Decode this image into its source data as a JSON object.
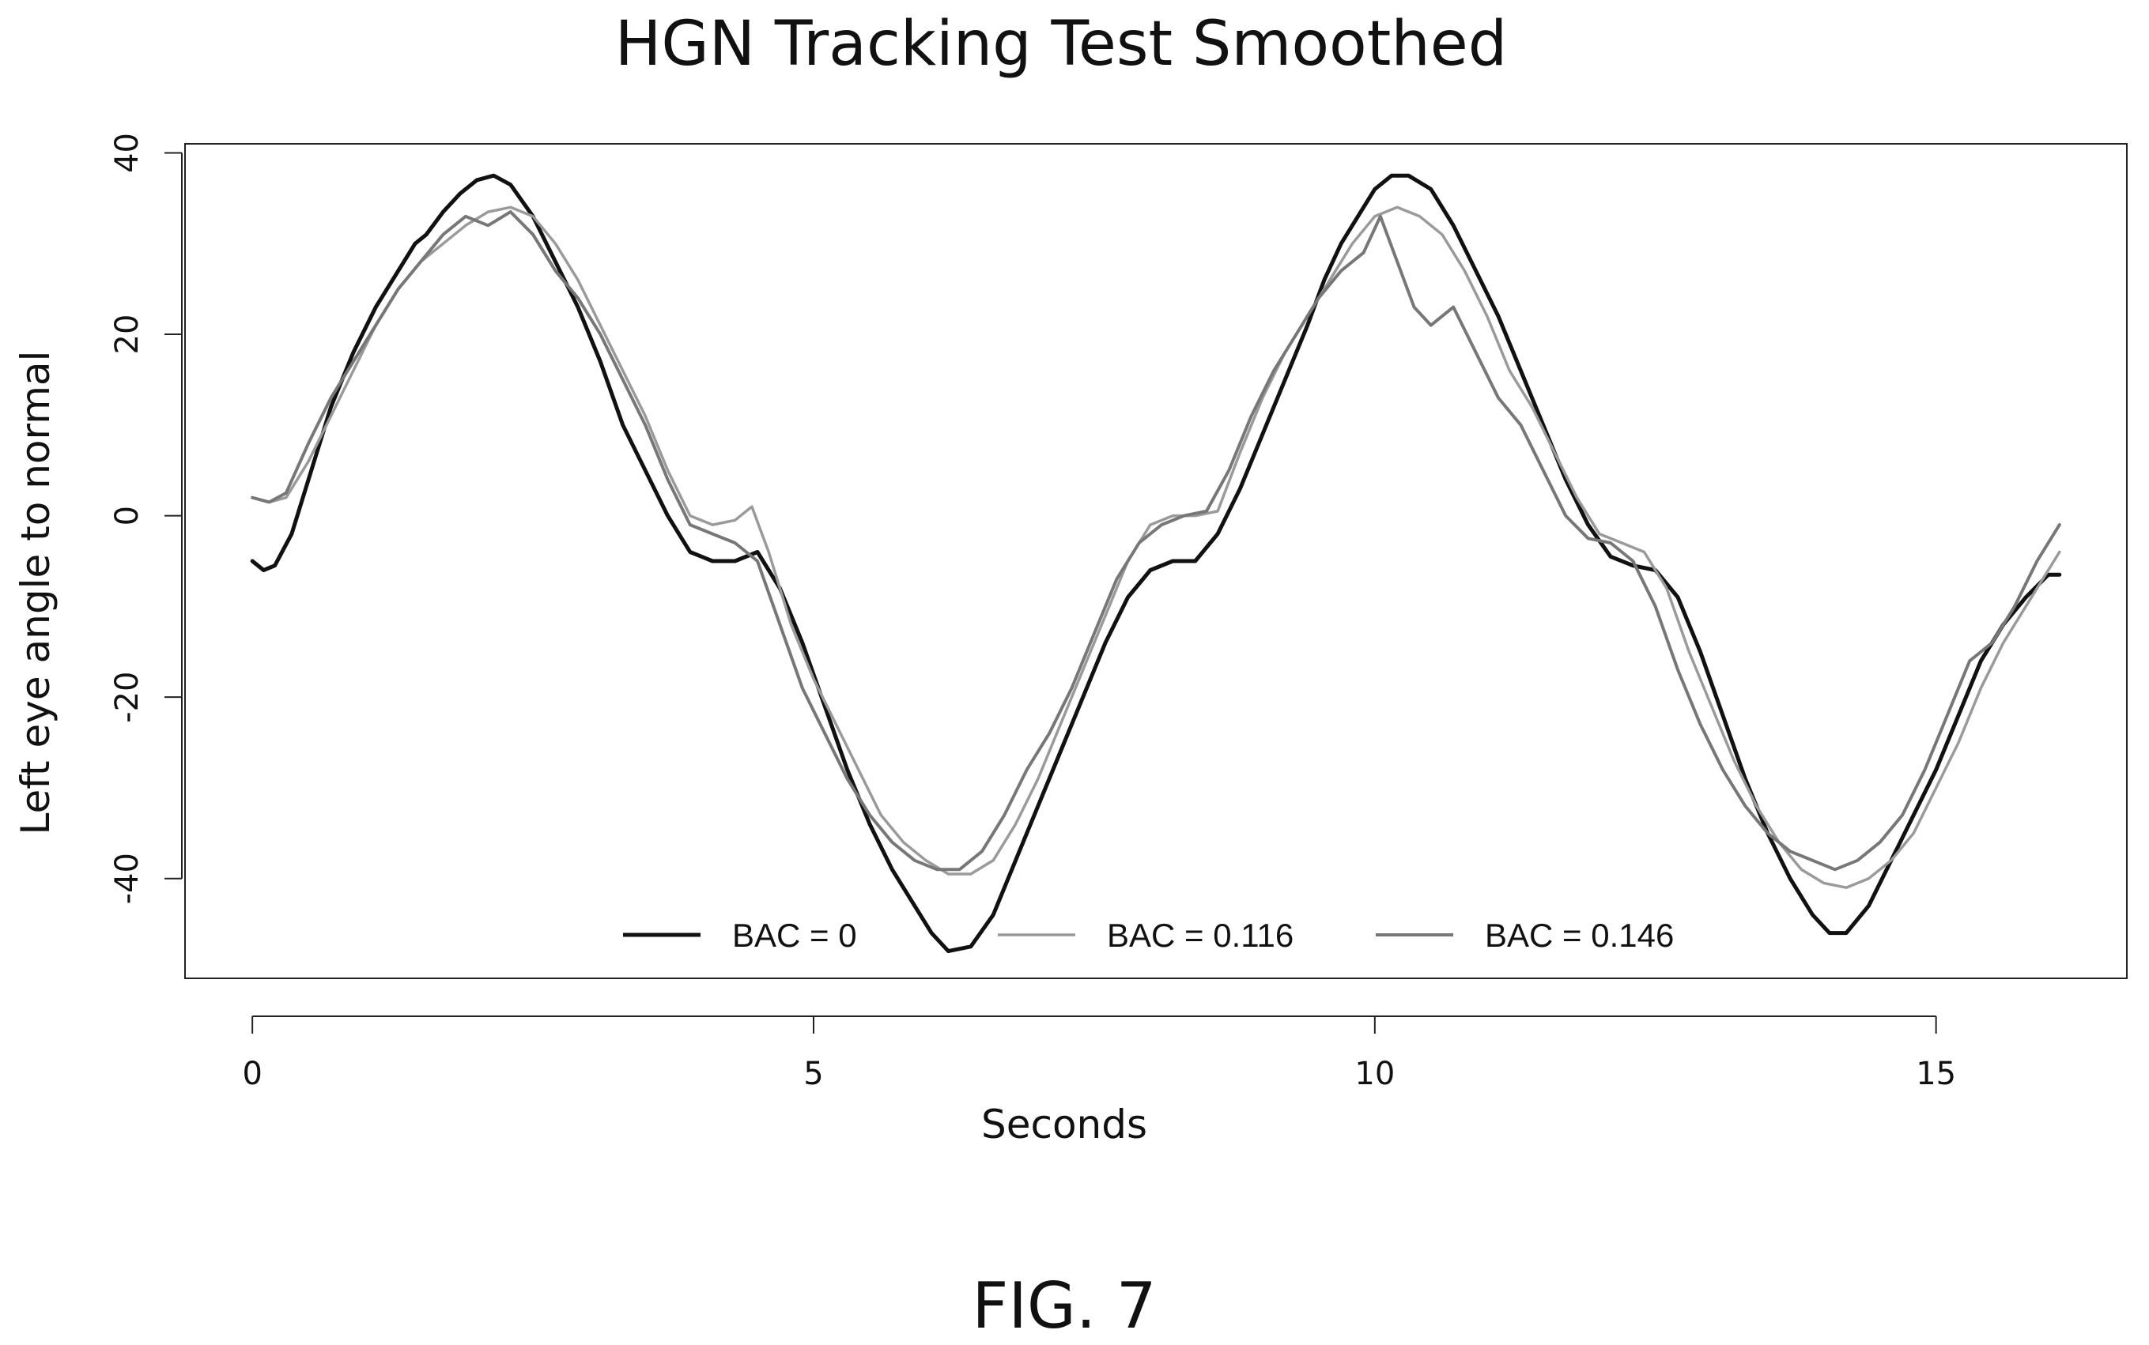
{
  "chart_data": {
    "type": "line",
    "title": "HGN Tracking Test Smoothed",
    "xlabel": "Seconds",
    "ylabel": "Left eye angle to normal",
    "xlim": [
      -0.6,
      16.7
    ],
    "ylim": [
      -51,
      41
    ],
    "xticks": [
      0,
      5,
      10,
      15
    ],
    "yticks": [
      -40,
      -20,
      0,
      20,
      40
    ],
    "grid": false,
    "legend_position": "bottom-center",
    "series": [
      {
        "name": "BAC = 0",
        "color": "#111111",
        "x": [
          0,
          0.1,
          0.2,
          0.35,
          0.5,
          0.7,
          0.9,
          1.1,
          1.3,
          1.45,
          1.55,
          1.7,
          1.85,
          2.0,
          2.15,
          2.3,
          2.5,
          2.7,
          2.9,
          3.1,
          3.3,
          3.5,
          3.7,
          3.9,
          4.1,
          4.3,
          4.5,
          4.7,
          4.9,
          5.1,
          5.3,
          5.5,
          5.7,
          5.9,
          6.05,
          6.2,
          6.4,
          6.6,
          6.8,
          7.0,
          7.2,
          7.4,
          7.6,
          7.8,
          8.0,
          8.2,
          8.4,
          8.6,
          8.8,
          9.0,
          9.2,
          9.4,
          9.55,
          9.7,
          9.85,
          10.0,
          10.15,
          10.3,
          10.5,
          10.7,
          10.9,
          11.1,
          11.3,
          11.5,
          11.7,
          11.9,
          12.1,
          12.3,
          12.5,
          12.7,
          12.9,
          13.1,
          13.3,
          13.5,
          13.7,
          13.9,
          14.05,
          14.2,
          14.4,
          14.6,
          14.8,
          15.0,
          15.2,
          15.4,
          15.6,
          15.8,
          16.0,
          16.1
        ],
        "y": [
          -5,
          -6,
          -5.5,
          -2,
          4,
          12,
          18,
          23,
          27,
          30,
          31,
          33.5,
          35.5,
          37,
          37.5,
          36.5,
          33,
          28,
          23,
          17,
          10,
          5,
          0,
          -4,
          -5,
          -5,
          -4,
          -8,
          -14,
          -21,
          -28,
          -34,
          -39,
          -43,
          -46,
          -48,
          -47.5,
          -44,
          -38,
          -32,
          -26,
          -20,
          -14,
          -9,
          -6,
          -5,
          -5,
          -2,
          3,
          9,
          15,
          21,
          26,
          30,
          33,
          36,
          37.5,
          37.5,
          36,
          32,
          27,
          22,
          16,
          10,
          4,
          -1,
          -4.5,
          -5.5,
          -6,
          -9,
          -15,
          -22,
          -29,
          -35,
          -40,
          -44,
          -46,
          -46,
          -43,
          -38,
          -33,
          -28,
          -22,
          -16,
          -12,
          -9,
          -6.5,
          -6.5
        ]
      },
      {
        "name": "BAC = 0.116",
        "color": "#9a9a9a",
        "x": [
          0,
          0.15,
          0.3,
          0.5,
          0.7,
          0.9,
          1.1,
          1.3,
          1.5,
          1.7,
          1.9,
          2.1,
          2.3,
          2.5,
          2.7,
          2.9,
          3.1,
          3.3,
          3.5,
          3.7,
          3.9,
          4.1,
          4.3,
          4.45,
          4.6,
          4.8,
          5.0,
          5.2,
          5.4,
          5.6,
          5.8,
          6.0,
          6.2,
          6.4,
          6.6,
          6.8,
          7.0,
          7.2,
          7.4,
          7.6,
          7.8,
          8.0,
          8.2,
          8.4,
          8.6,
          8.8,
          9.0,
          9.2,
          9.4,
          9.6,
          9.8,
          10.0,
          10.2,
          10.4,
          10.6,
          10.8,
          11.0,
          11.2,
          11.4,
          11.6,
          11.8,
          12.0,
          12.2,
          12.4,
          12.6,
          12.8,
          13.0,
          13.2,
          13.4,
          13.6,
          13.8,
          14.0,
          14.2,
          14.4,
          14.6,
          14.8,
          15.0,
          15.2,
          15.4,
          15.6,
          15.8,
          16.0,
          16.1
        ],
        "y": [
          2,
          1.5,
          2,
          6,
          11,
          16,
          21,
          25,
          28,
          30,
          32,
          33.5,
          34,
          33,
          30,
          26,
          21,
          16,
          11,
          5,
          0,
          -1,
          -0.5,
          1,
          -4,
          -12,
          -18,
          -23,
          -28,
          -33,
          -36,
          -38,
          -39.5,
          -39.5,
          -38,
          -34,
          -29,
          -23,
          -17,
          -11,
          -5,
          -1,
          0,
          0,
          0.5,
          7,
          13,
          18,
          22,
          26,
          30,
          33,
          34,
          33,
          31,
          27,
          22,
          16,
          12,
          7,
          2,
          -2,
          -3,
          -4,
          -8,
          -15,
          -21,
          -27,
          -32,
          -36,
          -39,
          -40.5,
          -41,
          -40,
          -38,
          -35,
          -30,
          -25,
          -19,
          -14,
          -10,
          -6,
          -4
        ]
      },
      {
        "name": "BAC = 0.146",
        "color": "#777777",
        "x": [
          0,
          0.15,
          0.3,
          0.5,
          0.7,
          0.9,
          1.1,
          1.3,
          1.5,
          1.7,
          1.9,
          2.1,
          2.3,
          2.5,
          2.7,
          2.9,
          3.1,
          3.3,
          3.5,
          3.7,
          3.9,
          4.1,
          4.3,
          4.5,
          4.7,
          4.9,
          5.1,
          5.3,
          5.5,
          5.7,
          5.9,
          6.1,
          6.3,
          6.5,
          6.7,
          6.9,
          7.1,
          7.3,
          7.5,
          7.7,
          7.9,
          8.1,
          8.3,
          8.5,
          8.7,
          8.9,
          9.1,
          9.3,
          9.5,
          9.7,
          9.9,
          10.05,
          10.2,
          10.35,
          10.5,
          10.7,
          10.9,
          11.1,
          11.3,
          11.5,
          11.7,
          11.9,
          12.1,
          12.3,
          12.5,
          12.7,
          12.9,
          13.1,
          13.3,
          13.5,
          13.7,
          13.9,
          14.1,
          14.3,
          14.5,
          14.7,
          14.9,
          15.1,
          15.3,
          15.5,
          15.7,
          15.9,
          16.1
        ],
        "y": [
          2,
          1.5,
          2.5,
          8,
          13,
          17,
          21,
          25,
          28,
          31,
          33,
          32,
          33.5,
          31,
          27,
          24,
          20,
          15,
          10,
          4,
          -1,
          -2,
          -3,
          -5,
          -12,
          -19,
          -24,
          -29,
          -33,
          -36,
          -38,
          -39,
          -39,
          -37,
          -33,
          -28,
          -24,
          -19,
          -13,
          -7,
          -3,
          -1,
          0,
          0.5,
          5,
          11,
          16,
          20,
          24,
          27,
          29,
          33,
          28,
          23,
          21,
          23,
          18,
          13,
          10,
          5,
          0,
          -2.5,
          -3,
          -5,
          -10,
          -17,
          -23,
          -28,
          -32,
          -35,
          -37,
          -38,
          -39,
          -38,
          -36,
          -33,
          -28,
          -22,
          -16,
          -14,
          -10,
          -5,
          -1
        ]
      }
    ]
  },
  "caption": "FIG. 7"
}
